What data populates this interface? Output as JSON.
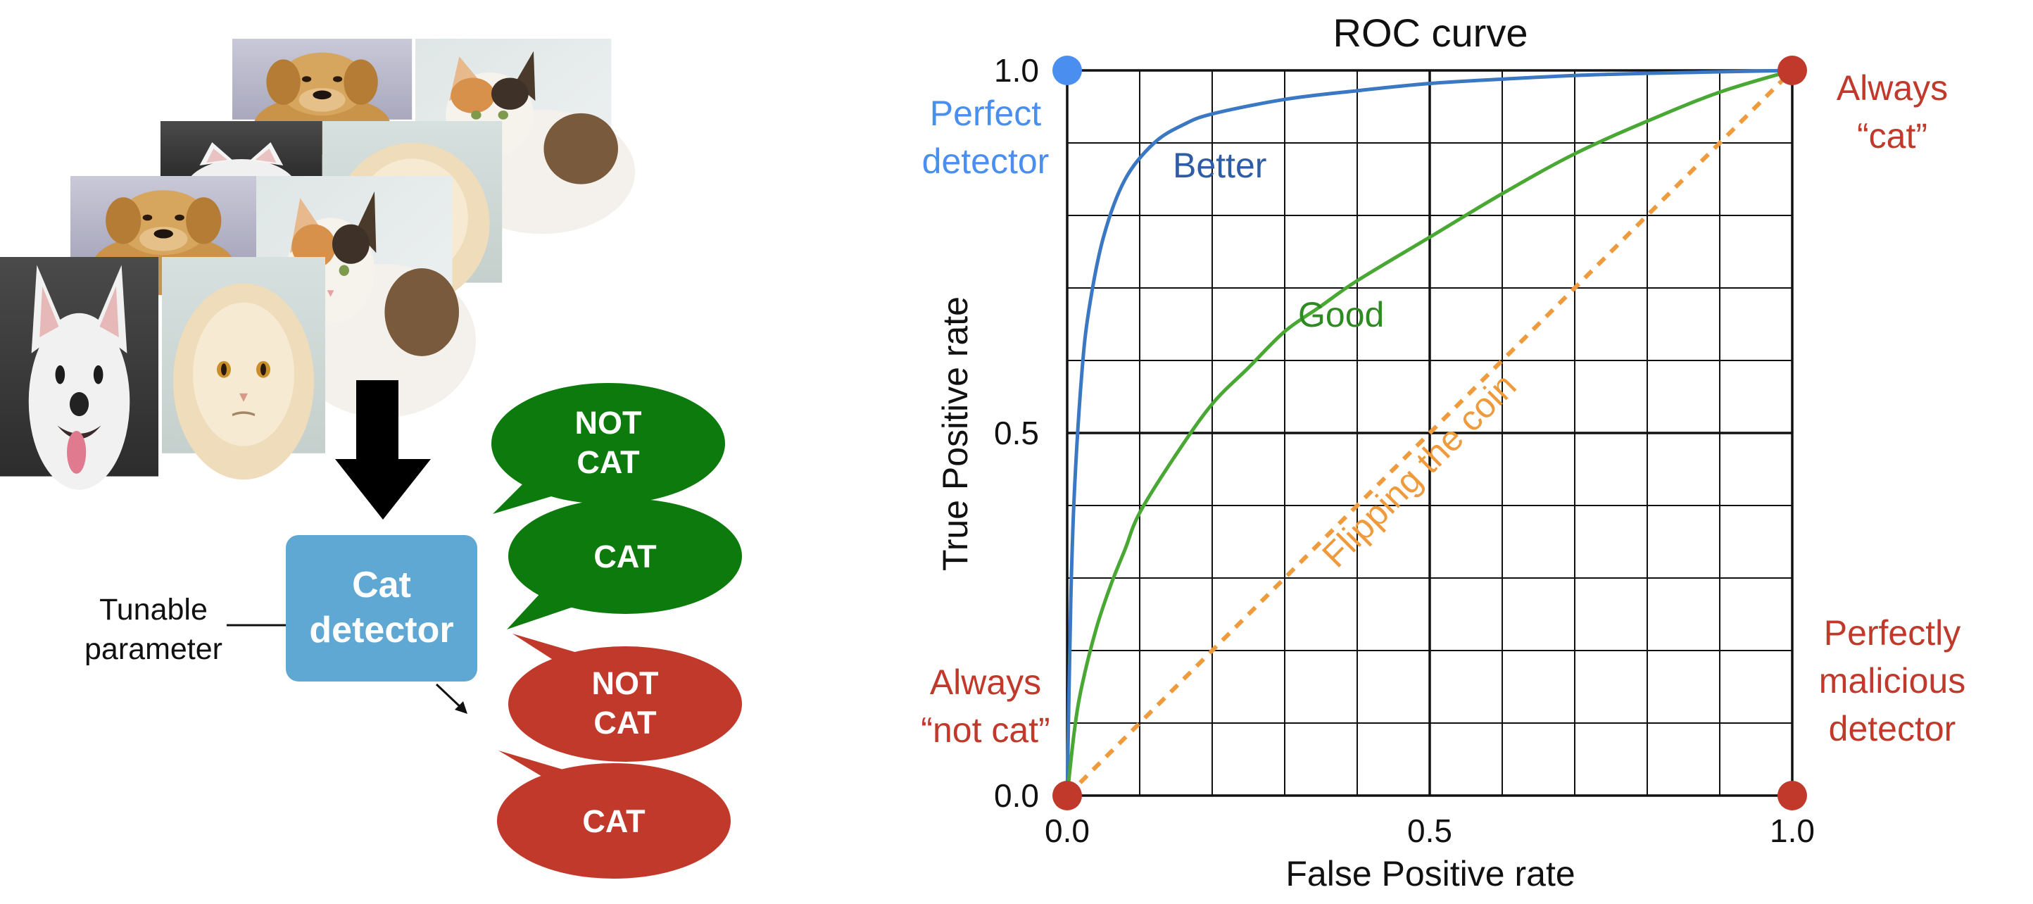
{
  "colors": {
    "blue_point": "#4a8ef0",
    "blue_text": "#4a8ef0",
    "better_text": "#2f5da3",
    "better_curve": "#3b78c4",
    "good_curve": "#49a833",
    "good_text": "#2e8b22",
    "coin_line": "#ef9a3c",
    "red": "#c0392b",
    "green_bubble": "#0d7a0d",
    "detector_box": "#5fa8d3",
    "arrow": "#000000"
  },
  "photos": [
    {
      "animal": "dog",
      "breed": "golden retriever"
    },
    {
      "animal": "cat",
      "breed": "calico"
    },
    {
      "animal": "cat",
      "breed": "white"
    },
    {
      "animal": "cat",
      "breed": "persian"
    },
    {
      "animal": "dog",
      "breed": "golden retriever"
    },
    {
      "animal": "cat",
      "breed": "calico"
    },
    {
      "animal": "dog",
      "breed": "french bulldog"
    },
    {
      "animal": "cat",
      "breed": "persian"
    }
  ],
  "detector": {
    "line1": "Cat",
    "line2": "detector"
  },
  "tunable": {
    "line1": "Tunable",
    "line2": "parameter"
  },
  "bubbles": [
    {
      "line1": "NOT",
      "line2": "CAT",
      "color": "#0d7a0d"
    },
    {
      "line1": "CAT",
      "line2": "",
      "color": "#0d7a0d"
    },
    {
      "line1": "NOT",
      "line2": "CAT",
      "color": "#c0392b"
    },
    {
      "line1": "CAT",
      "line2": "",
      "color": "#c0392b"
    }
  ],
  "chart_data": {
    "type": "line",
    "title": "ROC curve",
    "xlabel": "False Positive rate",
    "ylabel": "True Positive rate",
    "xlim": [
      0,
      1
    ],
    "ylim": [
      0,
      1
    ],
    "grid": true,
    "x_ticks": [
      "0.0",
      "0.5",
      "1.0"
    ],
    "y_ticks": [
      "0.0",
      "0.5",
      "1.0"
    ],
    "series": [
      {
        "name": "Better",
        "color": "#3b78c4",
        "x": [
          0,
          0.005,
          0.01,
          0.02,
          0.03,
          0.05,
          0.08,
          0.12,
          0.16,
          0.2,
          0.3,
          0.4,
          0.5,
          0.6,
          0.7,
          0.8,
          0.9,
          1.0
        ],
        "y": [
          0,
          0.27,
          0.42,
          0.58,
          0.67,
          0.77,
          0.85,
          0.9,
          0.925,
          0.94,
          0.96,
          0.972,
          0.982,
          0.988,
          0.993,
          0.996,
          0.998,
          1.0
        ]
      },
      {
        "name": "Good",
        "color": "#49a833",
        "x": [
          0,
          0.01,
          0.02,
          0.04,
          0.06,
          0.08,
          0.1,
          0.15,
          0.2,
          0.25,
          0.3,
          0.35,
          0.4,
          0.5,
          0.6,
          0.7,
          0.8,
          0.9,
          1.0
        ],
        "y": [
          0,
          0.09,
          0.15,
          0.23,
          0.29,
          0.34,
          0.39,
          0.47,
          0.54,
          0.59,
          0.64,
          0.675,
          0.71,
          0.77,
          0.83,
          0.885,
          0.93,
          0.97,
          1.0
        ]
      },
      {
        "name": "Flipping the coin",
        "color": "#ef9a3c",
        "dashed": true,
        "x": [
          0,
          1
        ],
        "y": [
          0,
          1
        ]
      }
    ],
    "points": [
      {
        "x": 0,
        "y": 1,
        "label": "Perfect\ndetector",
        "color": "#4a8ef0"
      },
      {
        "x": 1,
        "y": 1,
        "label": "Always\n“cat”",
        "color": "#c0392b"
      },
      {
        "x": 0,
        "y": 0,
        "label": "Always\n“not cat”",
        "color": "#c0392b"
      },
      {
        "x": 1,
        "y": 0,
        "label": "Perfectly\nmalicious\ndetector",
        "color": "#c0392b"
      }
    ]
  }
}
